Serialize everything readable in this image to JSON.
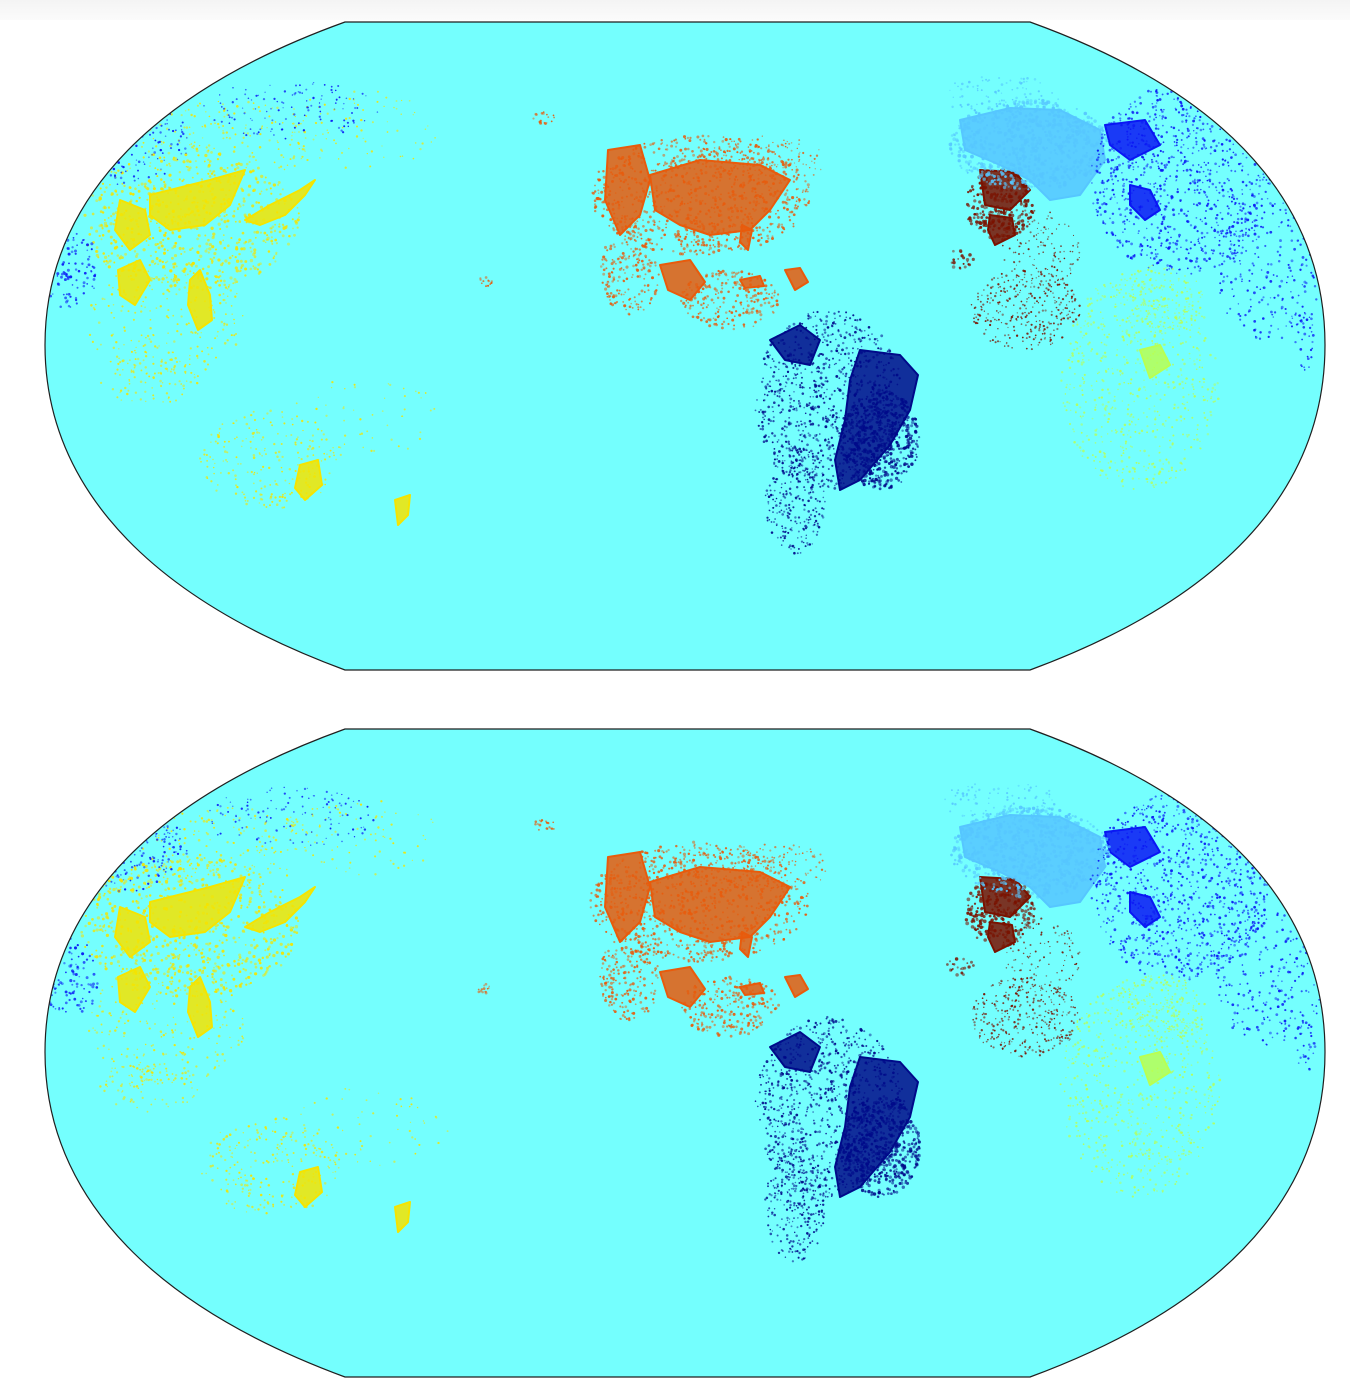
{
  "figure": {
    "panels": [
      "top",
      "bottom"
    ],
    "projection": "robinson",
    "central_longitude": -150,
    "background_color": "#ffffff",
    "ocean_color": "#74fffe",
    "outline_color": "#1f1f1f"
  },
  "clusters": [
    {
      "id": "east-asia",
      "color": "#f5e400",
      "label": ""
    },
    {
      "id": "north-america",
      "color": "#e85b0c",
      "label": ""
    },
    {
      "id": "south-america",
      "color": "#000a8a",
      "label": ""
    },
    {
      "id": "western-europe",
      "color": "#7a1200",
      "label": ""
    },
    {
      "id": "east-europe",
      "color": "#56c6ff",
      "label": ""
    },
    {
      "id": "asia-blue",
      "color": "#0a17f4",
      "label": ""
    },
    {
      "id": "africa",
      "color": "#b9ff52",
      "label": ""
    }
  ],
  "chart_data": [
    {
      "type": "scatter",
      "panel": "top",
      "description": "",
      "series_colors": [
        "#f5e400",
        "#e85b0c",
        "#000a8a",
        "#7a1200",
        "#56c6ff",
        "#0a17f4",
        "#b9ff52"
      ]
    },
    {
      "type": "scatter",
      "panel": "bottom",
      "description": "",
      "series_colors": [
        "#f5e400",
        "#e85b0c",
        "#000a8a",
        "#7a1200",
        "#56c6ff",
        "#0a17f4",
        "#b9ff52"
      ]
    }
  ]
}
